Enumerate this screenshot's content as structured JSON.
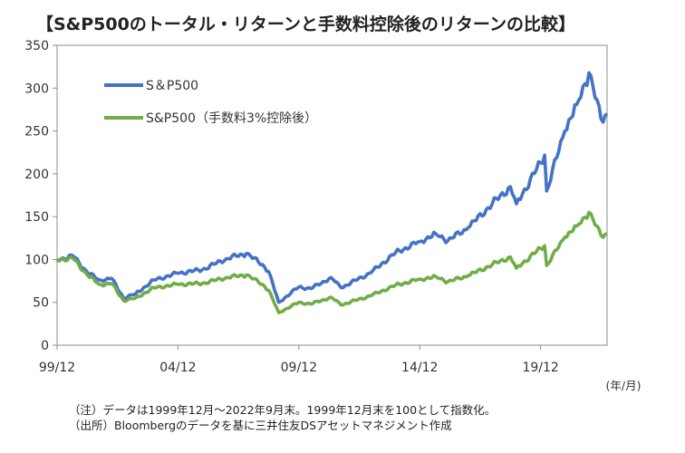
{
  "title": "【S&P500のトータル・リターンと手数料控除後のリターンの比較】",
  "notes": [
    "（注）データは1999年12月～2022年9月末。1999年12月末を100として指数化。",
    "（出所）Bloombergのデータを基に三井住友DSアセットマネジメント作成"
  ],
  "chart_data": {
    "type": "line",
    "x_unit": "(年/月)",
    "xlim": [
      "1999-12",
      "2022-09"
    ],
    "ylim": [
      0,
      350
    ],
    "y_ticks": [
      0,
      50,
      100,
      150,
      200,
      250,
      300,
      350
    ],
    "x_ticks": [
      "99/12",
      "04/12",
      "09/12",
      "14/12",
      "19/12"
    ],
    "grid": false,
    "legend_position": "top-left",
    "colors": {
      "sp500": "#4472C4",
      "net": "#70AD47"
    },
    "series": [
      {
        "name": "S＆P500",
        "color": "#4472C4",
        "x": [
          "1999-12",
          "2000-08",
          "2001-03",
          "2001-09",
          "2002-03",
          "2002-09",
          "2003-03",
          "2003-12",
          "2004-12",
          "2005-12",
          "2006-12",
          "2007-10",
          "2008-06",
          "2008-09",
          "2009-02",
          "2009-12",
          "2010-06",
          "2011-04",
          "2011-09",
          "2012-12",
          "2013-12",
          "2014-12",
          "2015-08",
          "2016-02",
          "2016-12",
          "2017-12",
          "2018-09",
          "2018-12",
          "2019-12",
          "2020-02",
          "2020-03",
          "2020-12",
          "2021-06",
          "2021-12",
          "2022-06",
          "2022-09"
        ],
        "y": [
          100,
          104,
          85,
          76,
          78,
          55,
          60,
          76,
          84,
          88,
          101,
          107,
          94,
          86,
          50,
          68,
          66,
          79,
          67,
          85,
          108,
          121,
          130,
          122,
          137,
          165,
          185,
          165,
          213,
          222,
          180,
          250,
          281,
          318,
          264,
          270
        ]
      },
      {
        "name": "S&P500（手数料3%控除後）",
        "color": "#70AD47",
        "x": [
          "1999-12",
          "2000-08",
          "2001-03",
          "2001-09",
          "2002-03",
          "2002-09",
          "2003-03",
          "2003-12",
          "2004-12",
          "2005-12",
          "2006-12",
          "2007-10",
          "2008-06",
          "2008-09",
          "2009-02",
          "2009-12",
          "2010-06",
          "2011-04",
          "2011-09",
          "2012-12",
          "2013-12",
          "2014-12",
          "2015-08",
          "2016-02",
          "2016-12",
          "2017-12",
          "2018-09",
          "2018-12",
          "2019-12",
          "2020-02",
          "2020-03",
          "2020-12",
          "2021-06",
          "2021-12",
          "2022-06",
          "2022-09"
        ],
        "y": [
          100,
          101,
          82,
          71,
          72,
          52,
          55,
          67,
          71,
          72,
          79,
          82,
          71,
          64,
          38,
          50,
          48,
          56,
          47,
          58,
          70,
          77,
          80,
          74,
          81,
          94,
          103,
          90,
          113,
          116,
          93,
          126,
          139,
          155,
          128,
          130
        ]
      }
    ]
  }
}
